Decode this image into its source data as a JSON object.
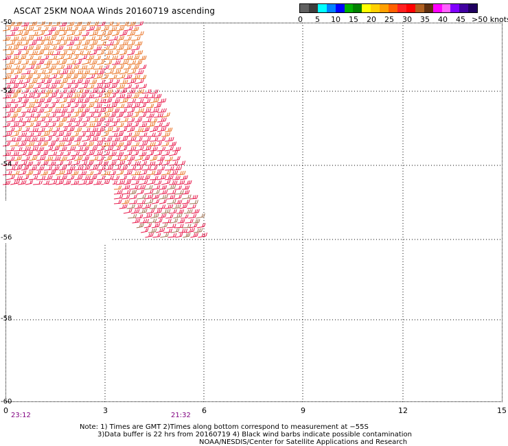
{
  "title": "ASCAT 25KM NOAA Winds 20160719 ascending",
  "legend": {
    "colors": [
      "#606060",
      "#3c3c3c",
      "#00ffff",
      "#0080ff",
      "#0000ff",
      "#00b000",
      "#008000",
      "#ffff00",
      "#ffd000",
      "#ffa000",
      "#ff6000",
      "#ff2020",
      "#ff0000",
      "#b06020",
      "#603010",
      "#ff00ff",
      "#ff60ff",
      "#8000ff",
      "#4000a0",
      "#200060"
    ],
    "ticks": [
      "0",
      "5",
      "10",
      "15",
      "20",
      "25",
      "30",
      "35",
      "40",
      "45",
      ">50 knots"
    ]
  },
  "lat_labels": [
    "-50",
    "-52",
    "-54",
    "-56",
    "-58",
    "-60"
  ],
  "lon_labels": [
    "0",
    "3",
    "6",
    "9",
    "12",
    "15"
  ],
  "times": [
    "23:12",
    "21:32"
  ],
  "notes": [
    "Note: 1) Times are GMT 2)Times along bottom correspond to measurement at −55S",
    "3)Data buffer is 22 hrs from 20160719 4) Black wind barbs indicate possible contamination",
    "NOAA/NESDIS/Center for Satellite Applications and Research"
  ],
  "wind_colors": {
    "orange": "#e87020",
    "red": "#e8184a",
    "tan": "#a07050",
    "black": "#000000"
  }
}
